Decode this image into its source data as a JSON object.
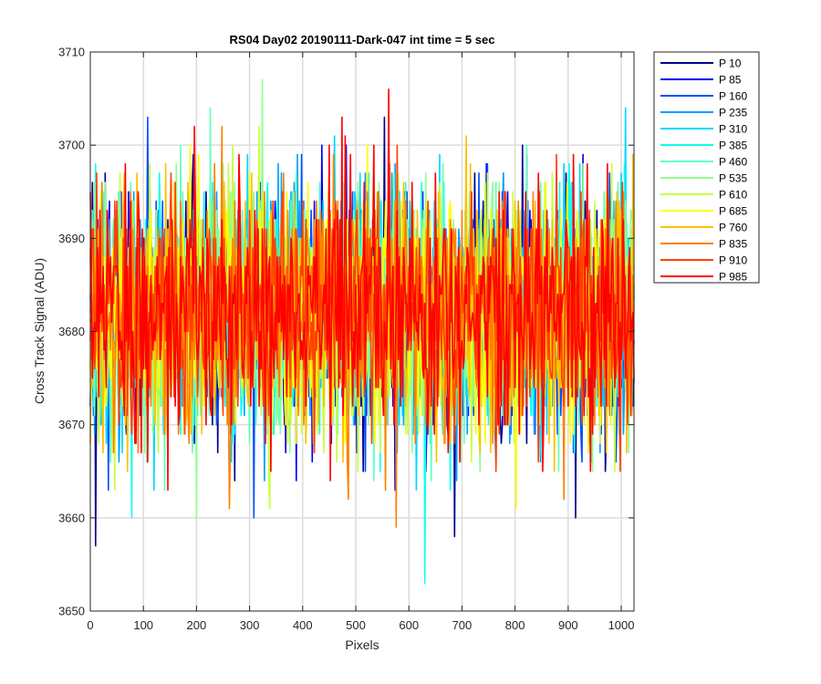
{
  "chart_data": {
    "type": "line",
    "title": "RS04 Day02 20190111-Dark-047 int time = 5 sec",
    "xlabel": "Pixels",
    "ylabel": "Cross Track Signal (ADU)",
    "xlim": [
      0,
      1024
    ],
    "ylim": [
      3650,
      3710
    ],
    "xticks": [
      0,
      100,
      200,
      300,
      400,
      500,
      600,
      700,
      800,
      900,
      1000
    ],
    "yticks": [
      3650,
      3660,
      3670,
      3680,
      3690,
      3700,
      3710
    ],
    "grid": true,
    "legend_position": "outside-right",
    "series_mean_approx": 3682,
    "series_range_approx": [
      3653,
      3710
    ],
    "series": [
      {
        "name": "P 10",
        "color": "#00008f"
      },
      {
        "name": "P 85",
        "color": "#0000ef"
      },
      {
        "name": "P 160",
        "color": "#0050ff"
      },
      {
        "name": "P 235",
        "color": "#00a0ff"
      },
      {
        "name": "P 310",
        "color": "#00d8ff"
      },
      {
        "name": "P 385",
        "color": "#10ffef"
      },
      {
        "name": "P 460",
        "color": "#60ffc0"
      },
      {
        "name": "P 535",
        "color": "#90ff90"
      },
      {
        "name": "P 610",
        "color": "#c8ff40"
      },
      {
        "name": "P 685",
        "color": "#ffff00"
      },
      {
        "name": "P 760",
        "color": "#ffc000"
      },
      {
        "name": "P 835",
        "color": "#ff8000"
      },
      {
        "name": "P 910",
        "color": "#ff4000"
      },
      {
        "name": "P 985",
        "color": "#ff0000"
      }
    ]
  }
}
